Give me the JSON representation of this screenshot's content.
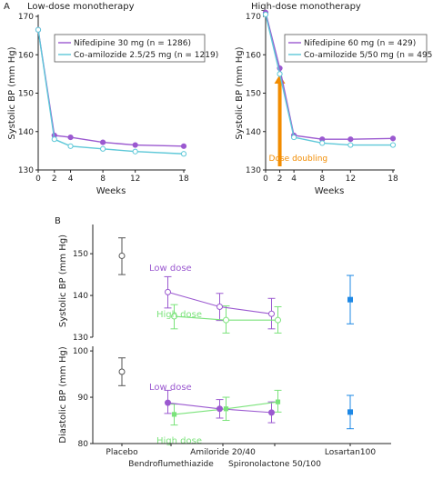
{
  "panel_labels": {
    "a": "A",
    "b": "B"
  },
  "colors": {
    "purple": "#9b59d0",
    "cyan": "#5ec8d8",
    "green": "#7be37b",
    "gray": "#555555",
    "blue": "#1e88e5",
    "orange": "#f28c00"
  },
  "chart_data": [
    {
      "type": "line",
      "title": "Low-dose monotherapy",
      "xlabel": "Weeks",
      "ylabel": "Systolic BP (mm Hg)",
      "xlim": [
        0,
        18
      ],
      "ylim": [
        130,
        170
      ],
      "xticks": [
        0,
        2,
        4,
        8,
        12,
        18
      ],
      "yticks": [
        130,
        140,
        150,
        160,
        170
      ],
      "series": [
        {
          "name": "Nifedipine 30 mg (n = 1286)",
          "color": "#9b59d0",
          "x": [
            0,
            2,
            4,
            8,
            12,
            18
          ],
          "y": [
            166.5,
            139,
            138.5,
            137.2,
            136.5,
            136.2
          ]
        },
        {
          "name": "Co-amilozide 2.5/25 mg (n = 1219)",
          "color": "#5ec8d8",
          "x": [
            0,
            2,
            4,
            8,
            12,
            18
          ],
          "y": [
            166.5,
            138,
            136.2,
            135.5,
            134.8,
            134.2
          ]
        }
      ]
    },
    {
      "type": "line",
      "title": "High-dose monotherapy",
      "xlabel": "Weeks",
      "ylabel": "Systolic BP (mm Hg)",
      "xlim": [
        0,
        18
      ],
      "ylim": [
        130,
        170
      ],
      "xticks": [
        0,
        2,
        4,
        8,
        12,
        18
      ],
      "yticks": [
        130,
        140,
        150,
        160,
        170
      ],
      "annotation": {
        "text": "Dose doubling",
        "x": 2
      },
      "series": [
        {
          "name": "Nifedipine 60 mg (n = 429)",
          "color": "#9b59d0",
          "x": [
            0,
            2,
            4,
            8,
            12,
            18
          ],
          "y": [
            171,
            156.5,
            139,
            138,
            138,
            138.2
          ]
        },
        {
          "name": "Co-amilozide 5/50 mg (n = 495)",
          "color": "#5ec8d8",
          "x": [
            0,
            2,
            4,
            8,
            12,
            18
          ],
          "y": [
            170.5,
            155,
            138.5,
            137,
            136.5,
            136.5
          ]
        }
      ]
    },
    {
      "type": "scatter",
      "ylabel": "Systolic BP (mm Hg)",
      "ylim": [
        130,
        157
      ],
      "yticks": [
        130,
        140,
        150
      ],
      "categories": [
        "Placebo",
        "Bendroflumethiazide",
        "Amiloride 20/40",
        "Spironolactone 50/100",
        "Losartan100"
      ],
      "series_labels": {
        "low": "Low dose",
        "high": "High dose"
      },
      "placebo": {
        "mean": 149.5,
        "lo": 145,
        "hi": 153.8
      },
      "low": {
        "mean": [
          140.8,
          137.3,
          135.6
        ],
        "lo": [
          137,
          134,
          132
        ],
        "hi": [
          144.5,
          140.5,
          139.3
        ]
      },
      "high": {
        "mean": [
          135,
          134.1,
          134.1
        ],
        "lo": [
          132,
          131,
          131
        ],
        "hi": [
          137.8,
          137.5,
          137.3
        ]
      },
      "losartan": {
        "mean": 139,
        "lo": 133.2,
        "hi": 144.8
      }
    },
    {
      "type": "scatter",
      "ylabel": "Diastolic BP (mm Hg)",
      "ylim": [
        80,
        101
      ],
      "yticks": [
        80,
        90,
        100
      ],
      "categories": [
        "Placebo",
        "Bendroflumethiazide",
        "Amiloride 20/40",
        "Spironolactone 50/100",
        "Losartan100"
      ],
      "series_labels": {
        "low": "Low dose",
        "high": "High dose"
      },
      "placebo": {
        "mean": 95.5,
        "lo": 92.5,
        "hi": 98.5
      },
      "low": {
        "mean": [
          88.8,
          87.5,
          86.7
        ],
        "lo": [
          86.5,
          85.5,
          84.5
        ],
        "hi": [
          91.5,
          89.5,
          89
        ]
      },
      "high": {
        "mean": [
          86.3,
          87.5,
          89
        ],
        "lo": [
          84,
          85,
          86.8
        ],
        "hi": [
          88.5,
          90,
          91.5
        ]
      },
      "losartan": {
        "mean": 86.8,
        "lo": 83.2,
        "hi": 90.4
      }
    }
  ]
}
